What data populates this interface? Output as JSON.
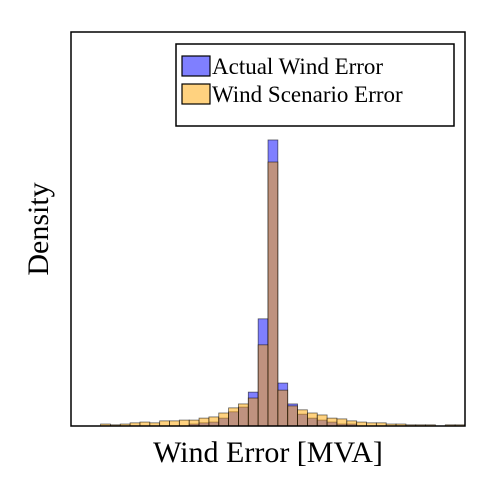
{
  "chart_data": {
    "type": "histogram",
    "xlabel": "Wind Error [MVA]",
    "ylabel": "Density",
    "bins": [
      0,
      1,
      2,
      3,
      4,
      5,
      6,
      7,
      8,
      9,
      10,
      11,
      12,
      13,
      14,
      15,
      16,
      17,
      18,
      19,
      20,
      21,
      22,
      23,
      24,
      25,
      26,
      27,
      28,
      29,
      30,
      31,
      32,
      33,
      34,
      35,
      36,
      37,
      38,
      39,
      40
    ],
    "xlim": [
      0,
      40
    ],
    "ylim": [
      0,
      1
    ],
    "legend": "upper right",
    "alpha": 0.5,
    "series": [
      {
        "name": "Actual Wind Error",
        "color": "#0000ff",
        "values": [
          0,
          0,
          0,
          0,
          0,
          0,
          0,
          0,
          0,
          0,
          0,
          0,
          0.005,
          0.008,
          0.01,
          0.02,
          0.036,
          0.048,
          0.086,
          0.272,
          0.726,
          0.109,
          0.056,
          0.03,
          0.02,
          0.015,
          0.01,
          0.005,
          0.005,
          0,
          0,
          0,
          0,
          0,
          0,
          0,
          0,
          0,
          0,
          0
        ]
      },
      {
        "name": "Wind Scenario Error",
        "color": "#ffa500",
        "values": [
          0,
          0,
          0,
          0.005,
          0.003,
          0.005,
          0.008,
          0.01,
          0.008,
          0.013,
          0.013,
          0.015,
          0.015,
          0.02,
          0.023,
          0.033,
          0.046,
          0.056,
          0.071,
          0.206,
          0.67,
          0.091,
          0.051,
          0.041,
          0.033,
          0.028,
          0.02,
          0.018,
          0.013,
          0.01,
          0.008,
          0.008,
          0.005,
          0.005,
          0.003,
          0.003,
          0.003,
          0,
          0.003,
          0.003
        ]
      }
    ]
  }
}
